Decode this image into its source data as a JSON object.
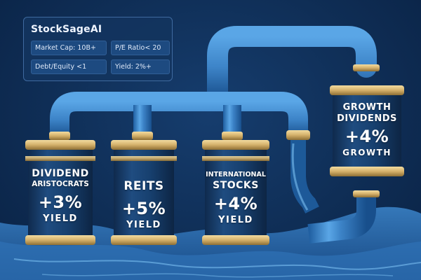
{
  "app": {
    "title": "StockSageAI"
  },
  "filters": [
    {
      "label": "Market Cap: 10B+"
    },
    {
      "label": "P/E Ratio< 20"
    },
    {
      "label": "Debt/Equity <1"
    },
    {
      "label": "Yield: 2%+"
    }
  ],
  "funds": {
    "dividend": {
      "name1": "DIVIDEND",
      "name2": "ARISTOCRATS",
      "value": "+3%",
      "unit": "YIELD"
    },
    "reits": {
      "name1": "REITS",
      "value": "+5%",
      "unit": "YIELD"
    },
    "international": {
      "name1": "INTERNATIONAL",
      "name2": "STOCKS",
      "value": "+4%",
      "unit": "YIELD"
    },
    "growth": {
      "name1": "GROWTH",
      "name2": "DIVIDENDS",
      "value": "+4%",
      "unit": "GROWTH"
    }
  },
  "colors": {
    "background": "#0f2e56",
    "pipe": "#3d84c8",
    "canister": "#15375f",
    "gold": "#d4b06a",
    "text": "#ffffff"
  },
  "icons": [
    "water-pipe-icon",
    "canister-icon",
    "water-splash-icon"
  ]
}
